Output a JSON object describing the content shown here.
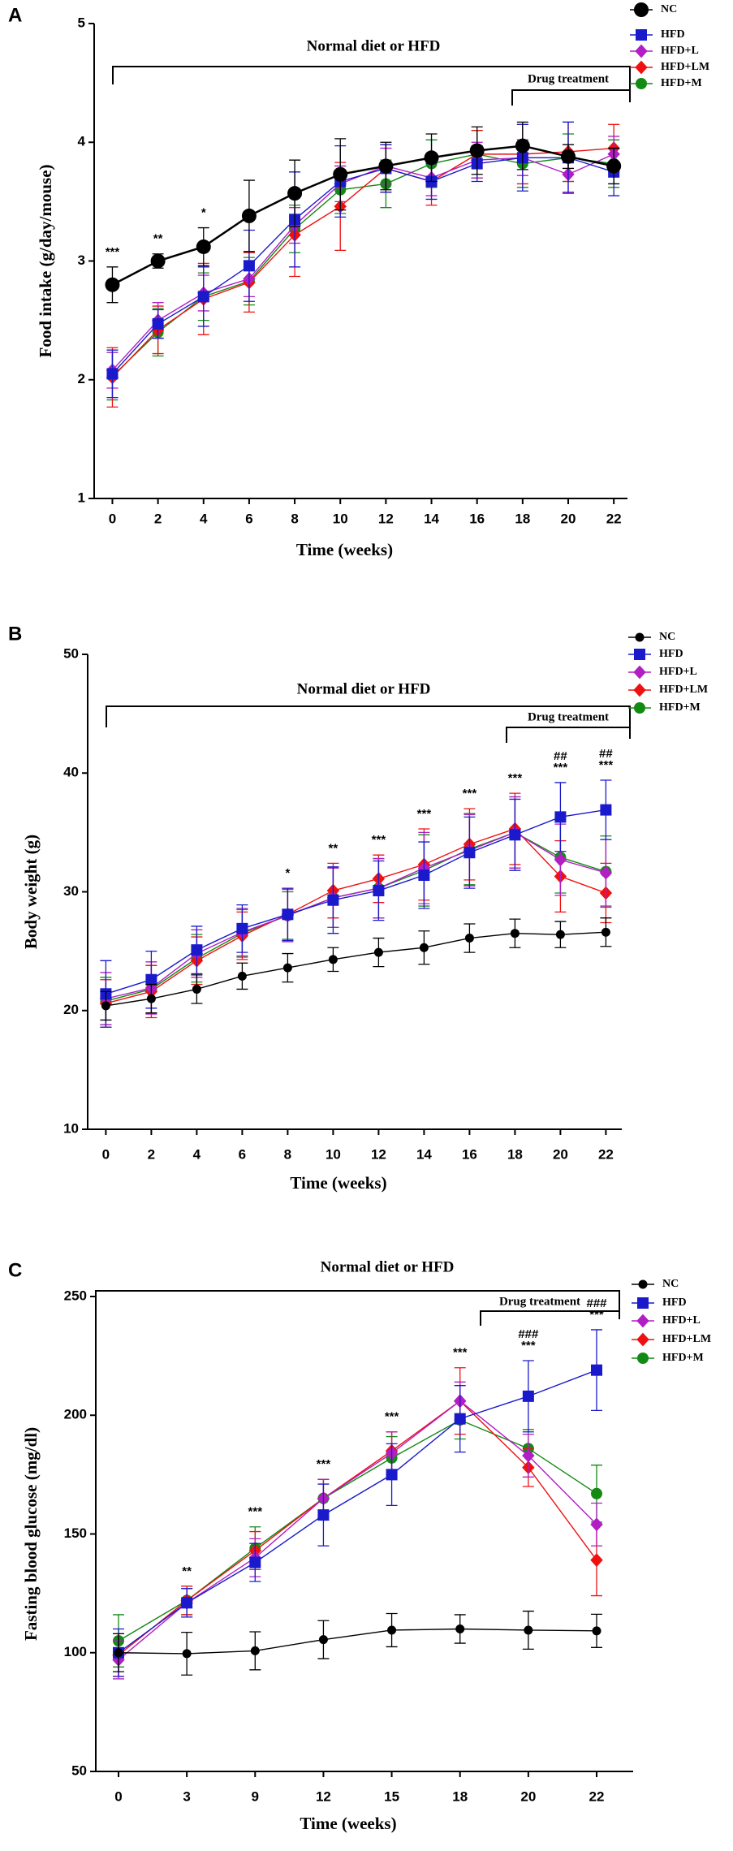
{
  "chart_data": [
    {
      "type": "line",
      "panel": "A",
      "ylabel": "Food intake (g/day/mouse)",
      "xlabel": "Time (weeks)",
      "x": [
        0,
        2,
        4,
        6,
        8,
        10,
        12,
        14,
        16,
        18,
        20,
        22
      ],
      "xticks": [
        0,
        2,
        4,
        6,
        8,
        10,
        12,
        14,
        16,
        18,
        20,
        22
      ],
      "xlim": [
        -0.8,
        22.6
      ],
      "ylim": [
        1,
        5
      ],
      "yticks": [
        1,
        2,
        3,
        4,
        5
      ],
      "periods": [
        "Normal diet or HFD",
        "Drug treatment"
      ],
      "series": [
        {
          "name": "NC",
          "color": "#000000",
          "marker": "circle",
          "values": [
            2.8,
            3.0,
            3.12,
            3.38,
            3.57,
            3.73,
            3.8,
            3.87,
            3.93,
            3.97,
            3.88,
            3.8
          ],
          "errors": [
            0.15,
            0.06,
            0.16,
            0.3,
            0.28,
            0.3,
            0.2,
            0.2,
            0.2,
            0.2,
            0.1,
            0.15
          ]
        },
        {
          "name": "HFD",
          "color": "#1a1acc",
          "marker": "square",
          "values": [
            2.05,
            2.47,
            2.7,
            2.96,
            3.35,
            3.67,
            3.78,
            3.67,
            3.82,
            3.87,
            3.87,
            3.75
          ],
          "errors": [
            0.2,
            0.12,
            0.25,
            0.3,
            0.4,
            0.3,
            0.2,
            0.15,
            0.15,
            0.28,
            0.3,
            0.2
          ]
        },
        {
          "name": "HFD+L",
          "color": "#b01ec4",
          "marker": "diamond",
          "values": [
            2.08,
            2.5,
            2.73,
            2.85,
            3.3,
            3.65,
            3.8,
            3.7,
            3.85,
            3.87,
            3.73,
            3.9
          ],
          "errors": [
            0.15,
            0.15,
            0.15,
            0.15,
            0.15,
            0.15,
            0.15,
            0.15,
            0.15,
            0.15,
            0.15,
            0.15
          ]
        },
        {
          "name": "HFD+LM",
          "color": "#ee1111",
          "marker": "diamond",
          "values": [
            2.02,
            2.42,
            2.68,
            2.82,
            3.22,
            3.46,
            3.78,
            3.67,
            3.9,
            3.9,
            3.92,
            3.95
          ],
          "errors": [
            0.25,
            0.2,
            0.3,
            0.25,
            0.35,
            0.37,
            0.2,
            0.2,
            0.2,
            0.25,
            0.25,
            0.2
          ]
        },
        {
          "name": "HFD+M",
          "color": "#138a13",
          "marker": "circle",
          "values": [
            2.03,
            2.4,
            2.7,
            2.83,
            3.27,
            3.6,
            3.65,
            3.82,
            3.9,
            3.82,
            3.87,
            3.82
          ],
          "errors": [
            0.2,
            0.2,
            0.2,
            0.2,
            0.2,
            0.2,
            0.2,
            0.2,
            0.2,
            0.2,
            0.2,
            0.2
          ]
        }
      ],
      "annotations": [
        {
          "x": 0,
          "text": "***"
        },
        {
          "x": 2,
          "text": "**"
        },
        {
          "x": 4,
          "text": "*"
        }
      ]
    },
    {
      "type": "line",
      "panel": "B",
      "ylabel": "Body weight (g)",
      "xlabel": "Time (weeks)",
      "x": [
        0,
        2,
        4,
        6,
        8,
        10,
        12,
        14,
        16,
        18,
        20,
        22
      ],
      "xticks": [
        0,
        2,
        4,
        6,
        8,
        10,
        12,
        14,
        16,
        18,
        20,
        22
      ],
      "xlim": [
        -0.8,
        22.7
      ],
      "ylim": [
        10,
        50
      ],
      "yticks": [
        10,
        20,
        30,
        40,
        50
      ],
      "periods": [
        "Normal diet or HFD",
        "Drug treatment"
      ],
      "series": [
        {
          "name": "NC",
          "color": "#000000",
          "marker": "circle",
          "values": [
            20.4,
            21.0,
            21.8,
            22.9,
            23.6,
            24.3,
            24.9,
            25.3,
            26.1,
            26.5,
            26.4,
            26.6
          ],
          "errors": [
            1.2,
            1.2,
            1.2,
            1.1,
            1.2,
            1.0,
            1.2,
            1.4,
            1.2,
            1.2,
            1.1,
            1.2
          ]
        },
        {
          "name": "HFD",
          "color": "#1a1acc",
          "marker": "square",
          "values": [
            21.4,
            22.6,
            25.1,
            26.9,
            28.1,
            29.3,
            30.1,
            31.4,
            33.3,
            34.8,
            36.3,
            36.9
          ],
          "errors": [
            2.8,
            2.4,
            2.0,
            2.0,
            2.2,
            2.8,
            2.5,
            2.8,
            3.0,
            3.0,
            2.9,
            2.5
          ]
        },
        {
          "name": "HFD+L",
          "color": "#b01ec4",
          "marker": "diamond",
          "values": [
            21.0,
            21.9,
            24.8,
            26.6,
            28.0,
            29.5,
            30.3,
            32.0,
            33.5,
            35.0,
            32.7,
            31.6
          ],
          "errors": [
            2.2,
            2.2,
            2.0,
            2.0,
            2.2,
            2.5,
            2.5,
            3.0,
            3.0,
            3.0,
            3.0,
            2.8
          ]
        },
        {
          "name": "HFD+LM",
          "color": "#ee1111",
          "marker": "diamond",
          "values": [
            20.6,
            21.6,
            24.2,
            26.3,
            28.1,
            30.1,
            31.1,
            32.3,
            34.0,
            35.3,
            31.3,
            29.9
          ],
          "errors": [
            2.0,
            2.2,
            2.0,
            2.0,
            2.2,
            2.3,
            2.0,
            3.0,
            3.0,
            3.0,
            3.0,
            2.5
          ]
        },
        {
          "name": "HFD+M",
          "color": "#138a13",
          "marker": "circle",
          "values": [
            20.8,
            21.8,
            24.4,
            26.5,
            28.0,
            29.5,
            30.3,
            31.8,
            33.6,
            35.0,
            32.9,
            31.7
          ],
          "errors": [
            2.0,
            2.0,
            2.0,
            2.0,
            2.0,
            2.5,
            2.5,
            3.0,
            3.0,
            3.0,
            3.0,
            3.0
          ]
        }
      ],
      "annotations": [
        {
          "x": 8,
          "text": "*"
        },
        {
          "x": 10,
          "text": "**"
        },
        {
          "x": 12,
          "text": "***"
        },
        {
          "x": 14,
          "text": "***"
        },
        {
          "x": 16,
          "text": "***"
        },
        {
          "x": 18,
          "text": "***"
        },
        {
          "x": 20,
          "text": "***"
        },
        {
          "x": 22,
          "text": "***"
        },
        {
          "x": 20,
          "text": "##"
        },
        {
          "x": 22,
          "text": "##"
        }
      ]
    },
    {
      "type": "line",
      "panel": "C",
      "ylabel": "Fasting blood glucose (mg/dl)",
      "xlabel": "Time (weeks)",
      "categories": [
        "0",
        "3",
        "9",
        "12",
        "15",
        "18",
        "20",
        "22"
      ],
      "ylim": [
        50,
        250
      ],
      "yticks": [
        50,
        100,
        150,
        200,
        250
      ],
      "periods": [
        "Normal diet or HFD",
        "Drug treatment"
      ],
      "series": [
        {
          "name": "NC",
          "color": "#000000",
          "marker": "circle",
          "values": [
            100,
            99.6,
            100.8,
            105.5,
            109.5,
            110,
            109.5,
            109.2
          ],
          "errors": [
            8,
            9,
            8,
            8,
            7,
            6,
            8,
            7
          ]
        },
        {
          "name": "HFD",
          "color": "#1a1acc",
          "marker": "square",
          "values": [
            100,
            121,
            138,
            158,
            175,
            198.5,
            208,
            219
          ],
          "errors": [
            10,
            6,
            8,
            13,
            13,
            14,
            15,
            17
          ]
        },
        {
          "name": "HFD+L",
          "color": "#b01ec4",
          "marker": "diamond",
          "values": [
            97,
            121,
            140,
            165,
            184,
            206,
            183,
            154
          ],
          "errors": [
            8,
            6,
            8,
            8,
            9,
            8,
            9,
            9
          ]
        },
        {
          "name": "HFD+LM",
          "color": "#ee1111",
          "marker": "diamond",
          "values": [
            99,
            122,
            143,
            165,
            185,
            206,
            178,
            139
          ],
          "errors": [
            9,
            6,
            8,
            8,
            8,
            14,
            8,
            15
          ]
        },
        {
          "name": "HFD+M",
          "color": "#138a13",
          "marker": "circle",
          "values": [
            105,
            122,
            144,
            165,
            182,
            198,
            186,
            167
          ],
          "errors": [
            11,
            6,
            9,
            8,
            9,
            8,
            8,
            12
          ]
        }
      ],
      "annotations": [
        {
          "category": "3",
          "text": "**"
        },
        {
          "category": "9",
          "text": "***"
        },
        {
          "category": "12",
          "text": "***"
        },
        {
          "category": "15",
          "text": "***"
        },
        {
          "category": "18",
          "text": "***"
        },
        {
          "category": "20",
          "text": "***"
        },
        {
          "category": "22",
          "text": "***"
        },
        {
          "category": "20",
          "text": "###"
        },
        {
          "category": "22",
          "text": "###"
        }
      ]
    }
  ]
}
